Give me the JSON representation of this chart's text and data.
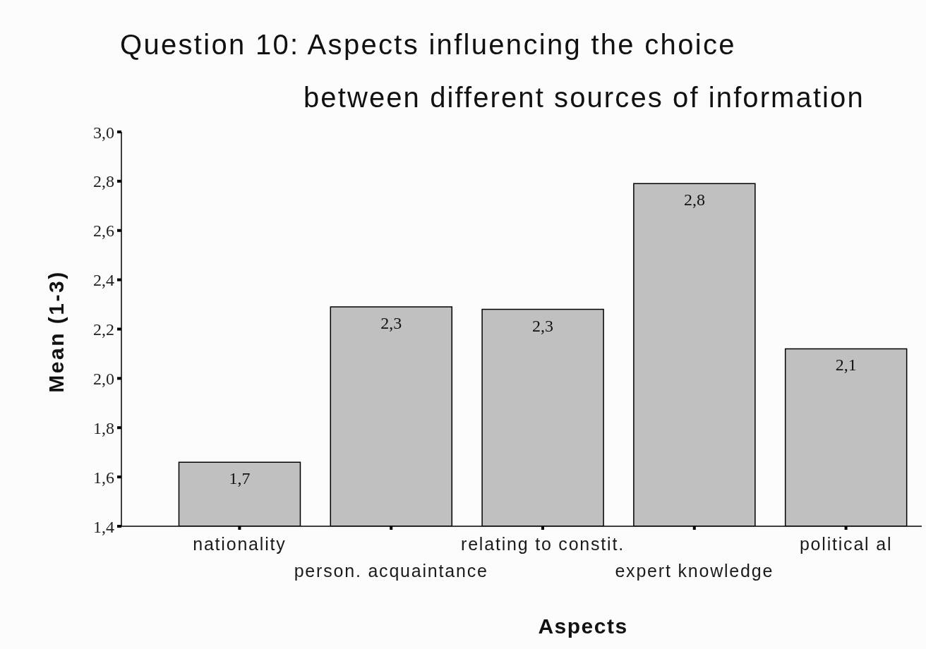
{
  "chart_data": {
    "type": "bar",
    "title": "Question 10: Aspects influencing the choice",
    "subtitle": "between different sources of information",
    "xlabel": "Aspects",
    "ylabel": "Mean (1-3)",
    "categories": [
      "nationality",
      "person. acquaintance",
      "relating to constit.",
      "expert knowledge",
      "political al"
    ],
    "values": [
      1.66,
      2.29,
      2.28,
      2.79,
      2.12
    ],
    "value_labels": [
      "1,7",
      "2,3",
      "2,3",
      "2,8",
      "2,1"
    ],
    "color": "#c0c0c0",
    "ylim": [
      1.4,
      3.0
    ],
    "yticks": [
      {
        "value": 1.4,
        "label": "1,4"
      },
      {
        "value": 1.6,
        "label": "1,6"
      },
      {
        "value": 1.8,
        "label": "1,8"
      },
      {
        "value": 2.0,
        "label": "2,0"
      },
      {
        "value": 2.2,
        "label": "2,2"
      },
      {
        "value": 2.4,
        "label": "2,4"
      },
      {
        "value": 2.6,
        "label": "2,6"
      },
      {
        "value": 2.8,
        "label": "2,8"
      },
      {
        "value": 3.0,
        "label": "3,0"
      }
    ]
  }
}
